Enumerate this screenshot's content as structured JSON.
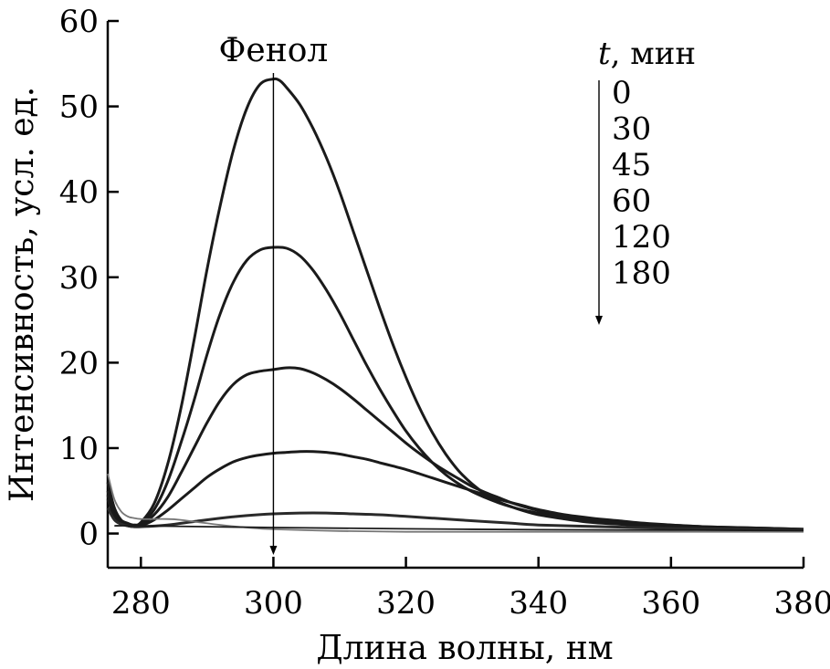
{
  "chart_data": {
    "type": "line",
    "xlabel": "Длина волны, нм",
    "ylabel": "Интенсивность, усл. ед.",
    "xlim": [
      275,
      380
    ],
    "ylim": [
      -4,
      60
    ],
    "x_ticks": [
      280,
      300,
      320,
      340,
      360,
      380
    ],
    "y_ticks": [
      0,
      10,
      20,
      30,
      40,
      50,
      60
    ],
    "grid": false,
    "annotation": "Фенол",
    "legend": {
      "title_var": "t",
      "title_rest": ", мин",
      "entries": [
        "0",
        "30",
        "45",
        "60",
        "120",
        "180"
      ]
    },
    "series": [
      {
        "name": "0",
        "color": "#1a1a1a",
        "x": [
          275,
          276,
          277,
          278,
          279,
          280,
          282,
          284,
          286,
          288,
          290,
          292,
          294,
          296,
          298,
          300,
          301,
          302,
          304,
          306,
          308,
          310,
          312,
          314,
          316,
          318,
          320,
          322,
          324,
          326,
          328,
          330,
          332,
          334,
          336,
          338,
          340,
          344,
          348,
          352,
          356,
          360,
          365,
          370,
          375,
          380
        ],
        "y": [
          6.0,
          3.0,
          1.6,
          1.2,
          1.0,
          1.3,
          3.5,
          8.0,
          14.5,
          22.5,
          31.0,
          38.5,
          45.0,
          49.8,
          52.6,
          53.2,
          53.0,
          52.2,
          50.2,
          47.4,
          44.0,
          40.0,
          35.5,
          31.0,
          26.5,
          22.2,
          18.3,
          14.8,
          11.8,
          9.3,
          7.3,
          5.8,
          4.6,
          3.7,
          3.1,
          2.6,
          2.2,
          1.7,
          1.3,
          1.1,
          0.9,
          0.8,
          0.6,
          0.5,
          0.4,
          0.3
        ]
      },
      {
        "name": "30",
        "color": "#1a1a1a",
        "x": [
          275,
          276,
          277,
          278,
          279,
          280,
          282,
          284,
          286,
          288,
          290,
          292,
          294,
          296,
          298,
          300,
          302,
          304,
          306,
          308,
          310,
          312,
          314,
          316,
          318,
          320,
          322,
          324,
          326,
          328,
          330,
          332,
          334,
          336,
          338,
          340,
          344,
          348,
          352,
          356,
          360,
          365,
          370,
          375,
          380
        ],
        "y": [
          5.0,
          2.5,
          1.4,
          1.0,
          0.9,
          1.1,
          2.8,
          6.0,
          10.5,
          15.5,
          21.0,
          25.8,
          29.5,
          32.0,
          33.2,
          33.5,
          33.4,
          32.5,
          30.8,
          28.5,
          25.8,
          22.8,
          19.8,
          17.0,
          14.4,
          12.0,
          10.0,
          8.3,
          6.9,
          5.8,
          4.9,
          4.2,
          3.6,
          3.1,
          2.7,
          2.4,
          1.9,
          1.5,
          1.2,
          1.0,
          0.9,
          0.7,
          0.6,
          0.5,
          0.4
        ]
      },
      {
        "name": "45",
        "color": "#1a1a1a",
        "x": [
          275,
          276,
          277,
          278,
          279,
          280,
          282,
          284,
          286,
          288,
          290,
          292,
          294,
          296,
          298,
          300,
          302,
          304,
          306,
          308,
          310,
          312,
          314,
          316,
          318,
          320,
          322,
          324,
          326,
          328,
          330,
          332,
          334,
          336,
          338,
          340,
          344,
          348,
          352,
          356,
          360,
          365,
          370,
          375,
          380
        ],
        "y": [
          4.5,
          2.2,
          1.3,
          1.0,
          0.9,
          1.0,
          2.2,
          4.2,
          7.0,
          10.0,
          13.0,
          15.6,
          17.5,
          18.6,
          19.0,
          19.2,
          19.4,
          19.3,
          18.8,
          18.0,
          17.0,
          15.8,
          14.5,
          13.2,
          11.9,
          10.6,
          9.4,
          8.3,
          7.3,
          6.4,
          5.5,
          4.8,
          4.2,
          3.6,
          3.1,
          2.7,
          2.1,
          1.7,
          1.4,
          1.1,
          1.0,
          0.8,
          0.7,
          0.6,
          0.5
        ]
      },
      {
        "name": "60",
        "color": "#1a1a1a",
        "x": [
          275,
          276,
          277,
          278,
          279,
          280,
          282,
          284,
          286,
          288,
          290,
          292,
          294,
          296,
          298,
          300,
          302,
          304,
          306,
          308,
          310,
          312,
          314,
          316,
          318,
          320,
          322,
          324,
          326,
          328,
          330,
          332,
          334,
          336,
          338,
          340,
          344,
          348,
          352,
          356,
          360,
          365,
          370,
          375,
          380
        ],
        "y": [
          4.0,
          2.0,
          1.2,
          0.9,
          0.8,
          0.9,
          1.6,
          2.7,
          4.0,
          5.3,
          6.6,
          7.6,
          8.4,
          8.9,
          9.2,
          9.4,
          9.5,
          9.6,
          9.6,
          9.5,
          9.3,
          9.0,
          8.7,
          8.3,
          7.9,
          7.5,
          7.0,
          6.5,
          6.0,
          5.5,
          5.0,
          4.5,
          4.0,
          3.6,
          3.2,
          2.8,
          2.2,
          1.8,
          1.5,
          1.2,
          1.0,
          0.8,
          0.7,
          0.6,
          0.5
        ]
      },
      {
        "name": "120",
        "color": "#2a2a2a",
        "x": [
          275,
          276,
          277,
          278,
          279,
          280,
          284,
          288,
          292,
          296,
          300,
          304,
          308,
          312,
          316,
          320,
          324,
          328,
          332,
          336,
          340,
          350,
          360,
          370,
          380
        ],
        "y": [
          3.0,
          1.6,
          1.1,
          0.9,
          0.8,
          0.8,
          1.0,
          1.4,
          1.8,
          2.1,
          2.3,
          2.4,
          2.4,
          2.3,
          2.2,
          2.0,
          1.8,
          1.6,
          1.4,
          1.2,
          1.0,
          0.8,
          0.6,
          0.5,
          0.4
        ]
      },
      {
        "name": "180",
        "color": "#777777",
        "x": [
          275,
          276,
          277,
          278,
          279,
          280,
          282,
          284,
          286,
          288,
          292,
          296,
          300,
          310,
          320,
          330,
          340,
          350,
          360,
          370,
          380
        ],
        "y": [
          7.0,
          4.0,
          2.6,
          2.0,
          1.8,
          1.7,
          1.7,
          1.7,
          1.6,
          1.4,
          1.0,
          0.7,
          0.5,
          0.3,
          0.2,
          0.2,
          0.2,
          0.2,
          0.2,
          0.2,
          0.2
        ]
      },
      {
        "name": "",
        "color": "#1a1a1a",
        "x": [
          276,
          280,
          300,
          320,
          340,
          360,
          380
        ],
        "y": [
          0.9,
          0.9,
          0.7,
          0.55,
          0.45,
          0.4,
          0.35
        ]
      }
    ]
  }
}
